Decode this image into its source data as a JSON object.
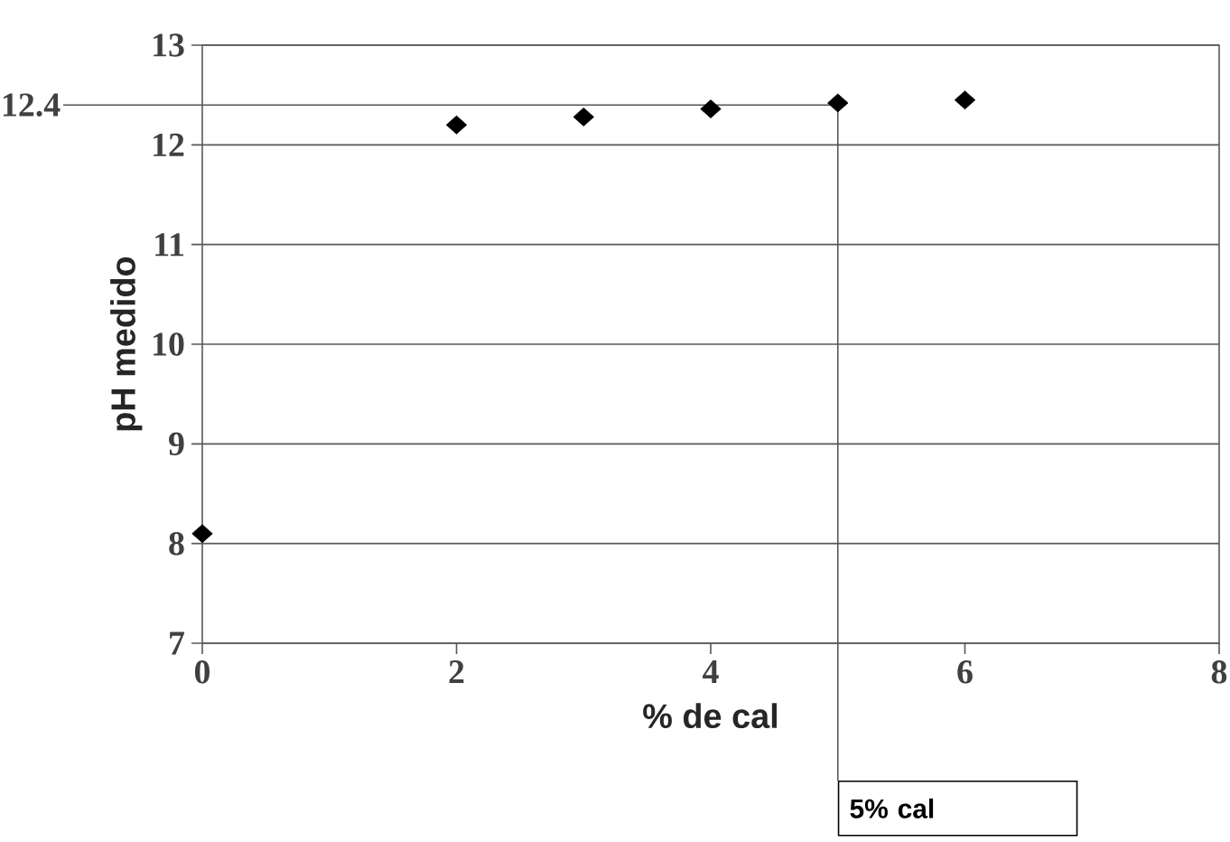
{
  "chart_data": {
    "type": "scatter",
    "xlabel": "% de cal",
    "ylabel": "pH medido",
    "x": [
      0,
      2,
      3,
      4,
      5,
      6
    ],
    "values": [
      8.1,
      12.2,
      12.28,
      12.36,
      12.42,
      12.45
    ],
    "color": "#000000",
    "marker": "diamond",
    "xlim": [
      0,
      8
    ],
    "ylim": [
      7,
      13
    ],
    "xticks": [
      0,
      2,
      4,
      6,
      8
    ],
    "yticks": [
      7,
      8,
      9,
      10,
      11,
      12,
      13
    ],
    "grid": "y",
    "ref_lines": [
      {
        "axis": "y",
        "value": 12.4,
        "label": "12.4",
        "color": "#555555"
      },
      {
        "axis": "x",
        "value": 5,
        "label": "5% cal",
        "color": "#555555"
      }
    ]
  }
}
